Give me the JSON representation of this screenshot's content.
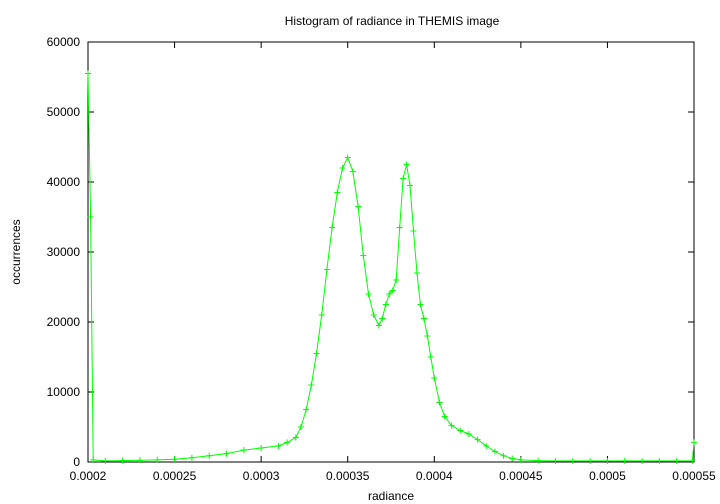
{
  "chart_data": {
    "type": "line",
    "title": "Histogram of radiance in THEMIS image",
    "xlabel": "radiance",
    "ylabel": "occurrences",
    "xlim": [
      0.0002,
      0.00055
    ],
    "ylim": [
      0,
      60000
    ],
    "x_ticks": [
      "0.0002",
      "0.00025",
      "0.0003",
      "0.00035",
      "0.0004",
      "0.00045",
      "0.0005",
      "0.00055"
    ],
    "x_tick_values": [
      0.0002,
      0.00025,
      0.0003,
      0.00035,
      0.0004,
      0.00045,
      0.0005,
      0.00055
    ],
    "y_ticks": [
      "0",
      "10000",
      "20000",
      "30000",
      "40000",
      "50000",
      "60000"
    ],
    "y_tick_values": [
      0,
      10000,
      20000,
      30000,
      40000,
      50000,
      60000
    ],
    "grid": false,
    "legend": "none",
    "series_color": "#00ff00",
    "marker": "plus",
    "series": [
      {
        "x": [
          0.0002,
          0.0002015,
          0.000203,
          0.00021,
          0.00022,
          0.00023,
          0.00024,
          0.00025,
          0.00026,
          0.00027,
          0.00028,
          0.00029,
          0.0003,
          0.00031,
          0.000315,
          0.00032,
          0.000323,
          0.000326,
          0.000329,
          0.000332,
          0.000335,
          0.000338,
          0.000341,
          0.000344,
          0.000347,
          0.00035,
          0.000353,
          0.000356,
          0.000359,
          0.000362,
          0.000365,
          0.000368,
          0.00037,
          0.000372,
          0.000374,
          0.000376,
          0.000378,
          0.00038,
          0.000382,
          0.000384,
          0.000386,
          0.000388,
          0.00039,
          0.000392,
          0.000394,
          0.000396,
          0.000398,
          0.0004,
          0.000403,
          0.000406,
          0.00041,
          0.000415,
          0.00042,
          0.000425,
          0.00043,
          0.000435,
          0.00044,
          0.000445,
          0.00045,
          0.00046,
          0.00047,
          0.00048,
          0.00049,
          0.0005,
          0.00051,
          0.00052,
          0.00053,
          0.00054,
          0.000549,
          0.00055
        ],
        "y": [
          55500,
          35000,
          300,
          150,
          200,
          250,
          300,
          400,
          600,
          900,
          1200,
          1700,
          2000,
          2300,
          2800,
          3500,
          5000,
          7500,
          11000,
          15500,
          21000,
          27500,
          33500,
          38500,
          42000,
          43500,
          41500,
          36500,
          29500,
          24000,
          21000,
          19500,
          20500,
          22500,
          24000,
          24500,
          26000,
          33500,
          40500,
          42500,
          39500,
          33000,
          27000,
          22500,
          20500,
          18000,
          15000,
          12000,
          8500,
          6500,
          5200,
          4500,
          4000,
          3200,
          2300,
          1500,
          900,
          500,
          300,
          200,
          150,
          150,
          150,
          150,
          150,
          150,
          150,
          150,
          150,
          2800
        ]
      }
    ]
  }
}
